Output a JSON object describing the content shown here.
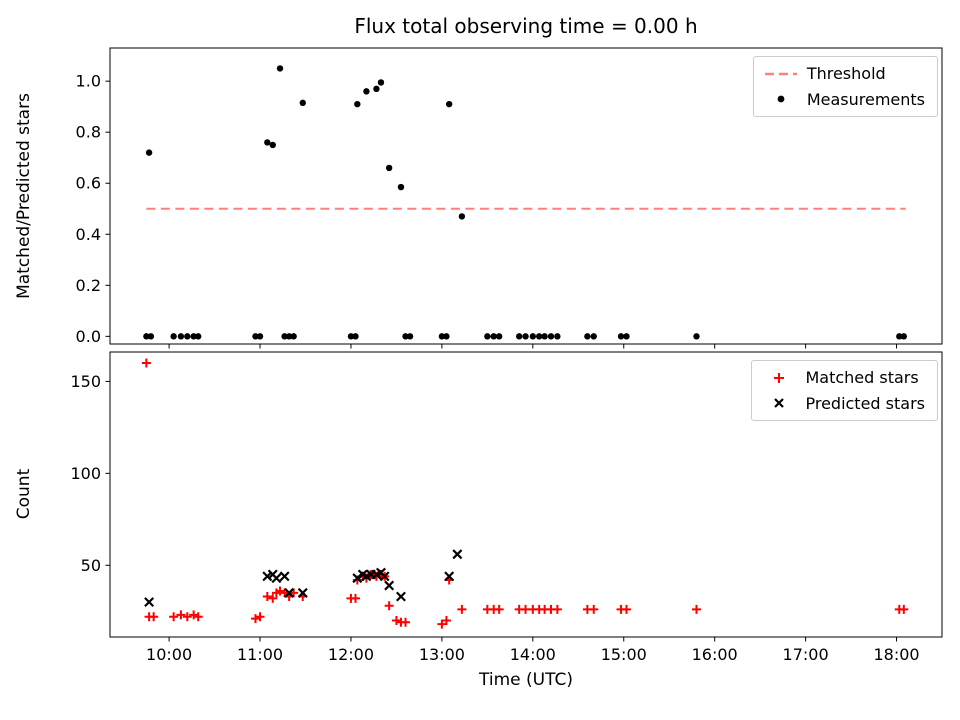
{
  "figure": {
    "title": "Flux total observing time = 0.00 h",
    "xlabel": "Time (UTC)",
    "background_color": "#ffffff"
  },
  "chart_data": [
    {
      "type": "scatter",
      "title": "Flux total observing time = 0.00 h",
      "ylabel": "Matched/Predicted stars",
      "xlabel": "",
      "xlim": [
        9.35,
        18.5
      ],
      "ylim": [
        -0.03,
        1.13
      ],
      "grid": false,
      "legend_position": "upper right",
      "yticks": [
        0.0,
        0.2,
        0.4,
        0.6,
        0.8,
        1.0
      ],
      "ytick_labels": [
        "0.0",
        "0.2",
        "0.4",
        "0.6",
        "0.8",
        "1.0"
      ],
      "xticks": [
        10,
        11,
        12,
        13,
        14,
        15,
        16,
        17,
        18
      ],
      "xtick_labels": [],
      "threshold": {
        "label": "Threshold",
        "value": 0.5,
        "x_start": 9.75,
        "x_end": 18.1,
        "color": "#ff7f7f"
      },
      "legend": [
        {
          "label": "Threshold",
          "marker": "dashed-line",
          "color": "#ff7f7f"
        },
        {
          "label": "Measurements",
          "marker": "dot",
          "color": "#000000"
        }
      ],
      "series": [
        {
          "name": "Measurements",
          "marker": "dot",
          "color": "#000000",
          "points": [
            [
              9.75,
              0
            ],
            [
              9.78,
              0.72
            ],
            [
              9.8,
              0
            ],
            [
              10.05,
              0
            ],
            [
              10.13,
              0
            ],
            [
              10.2,
              0
            ],
            [
              10.27,
              0
            ],
            [
              10.32,
              0
            ],
            [
              10.95,
              0
            ],
            [
              11.0,
              0
            ],
            [
              11.08,
              0.76
            ],
            [
              11.14,
              0.75
            ],
            [
              11.22,
              1.05
            ],
            [
              11.27,
              0
            ],
            [
              11.32,
              0
            ],
            [
              11.37,
              0
            ],
            [
              11.47,
              0.915
            ],
            [
              12.0,
              0
            ],
            [
              12.05,
              0
            ],
            [
              12.07,
              0.91
            ],
            [
              12.17,
              0.96
            ],
            [
              12.28,
              0.97
            ],
            [
              12.33,
              0.995
            ],
            [
              12.42,
              0.66
            ],
            [
              12.55,
              0.585
            ],
            [
              12.6,
              0
            ],
            [
              12.65,
              0
            ],
            [
              13.0,
              0
            ],
            [
              13.05,
              0
            ],
            [
              13.08,
              0.91
            ],
            [
              13.22,
              0.47
            ],
            [
              13.5,
              0
            ],
            [
              13.57,
              0
            ],
            [
              13.63,
              0
            ],
            [
              13.85,
              0
            ],
            [
              13.92,
              0
            ],
            [
              14.0,
              0
            ],
            [
              14.07,
              0
            ],
            [
              14.13,
              0
            ],
            [
              14.2,
              0
            ],
            [
              14.27,
              0
            ],
            [
              14.6,
              0
            ],
            [
              14.67,
              0
            ],
            [
              14.97,
              0
            ],
            [
              15.03,
              0
            ],
            [
              15.8,
              0
            ],
            [
              18.03,
              0
            ],
            [
              18.08,
              0
            ]
          ]
        }
      ]
    },
    {
      "type": "scatter",
      "title": "",
      "ylabel": "Count",
      "xlabel": "Time (UTC)",
      "xlim": [
        9.35,
        18.5
      ],
      "ylim": [
        11,
        166
      ],
      "grid": false,
      "legend_position": "upper right",
      "yticks": [
        50,
        100,
        150
      ],
      "ytick_labels": [
        "50",
        "100",
        "150"
      ],
      "xticks": [
        10,
        11,
        12,
        13,
        14,
        15,
        16,
        17,
        18
      ],
      "xtick_labels": [
        "10:00",
        "11:00",
        "12:00",
        "13:00",
        "14:00",
        "15:00",
        "16:00",
        "17:00",
        "18:00"
      ],
      "legend": [
        {
          "label": "Matched stars",
          "marker": "plus",
          "color": "#ff0000"
        },
        {
          "label": "Predicted stars",
          "marker": "x",
          "color": "#000000"
        }
      ],
      "series": [
        {
          "name": "Matched stars",
          "marker": "plus",
          "color": "#ff0000",
          "points": [
            [
              9.75,
              160
            ],
            [
              9.78,
              22
            ],
            [
              9.83,
              22
            ],
            [
              10.05,
              22
            ],
            [
              10.13,
              23
            ],
            [
              10.2,
              22
            ],
            [
              10.27,
              23
            ],
            [
              10.32,
              22
            ],
            [
              10.95,
              21
            ],
            [
              11.0,
              22
            ],
            [
              11.08,
              33
            ],
            [
              11.14,
              32
            ],
            [
              11.18,
              35
            ],
            [
              11.22,
              36
            ],
            [
              11.27,
              35
            ],
            [
              11.32,
              33
            ],
            [
              11.37,
              35
            ],
            [
              11.47,
              33
            ],
            [
              12.0,
              32
            ],
            [
              12.05,
              32
            ],
            [
              12.07,
              42
            ],
            [
              12.13,
              44
            ],
            [
              12.17,
              43
            ],
            [
              12.22,
              45
            ],
            [
              12.28,
              44
            ],
            [
              12.33,
              45
            ],
            [
              12.37,
              44
            ],
            [
              12.42,
              28
            ],
            [
              12.5,
              20
            ],
            [
              12.55,
              19
            ],
            [
              12.6,
              19
            ],
            [
              13.0,
              18
            ],
            [
              13.05,
              20
            ],
            [
              13.08,
              42
            ],
            [
              13.22,
              26
            ],
            [
              13.5,
              26
            ],
            [
              13.57,
              26
            ],
            [
              13.63,
              26
            ],
            [
              13.85,
              26
            ],
            [
              13.92,
              26
            ],
            [
              14.0,
              26
            ],
            [
              14.07,
              26
            ],
            [
              14.13,
              26
            ],
            [
              14.2,
              26
            ],
            [
              14.27,
              26
            ],
            [
              14.6,
              26
            ],
            [
              14.67,
              26
            ],
            [
              14.97,
              26
            ],
            [
              15.03,
              26
            ],
            [
              15.8,
              26
            ],
            [
              18.03,
              26
            ],
            [
              18.08,
              26
            ]
          ]
        },
        {
          "name": "Predicted stars",
          "marker": "x",
          "color": "#000000",
          "points": [
            [
              9.78,
              30
            ],
            [
              11.08,
              44
            ],
            [
              11.14,
              45
            ],
            [
              11.18,
              43
            ],
            [
              11.27,
              44
            ],
            [
              11.32,
              35
            ],
            [
              11.47,
              35
            ],
            [
              12.07,
              43
            ],
            [
              12.13,
              45
            ],
            [
              12.17,
              44
            ],
            [
              12.22,
              45
            ],
            [
              12.28,
              45
            ],
            [
              12.33,
              46
            ],
            [
              12.37,
              44
            ],
            [
              12.42,
              39
            ],
            [
              12.55,
              33
            ],
            [
              13.08,
              44
            ],
            [
              13.17,
              56
            ]
          ]
        }
      ]
    }
  ]
}
